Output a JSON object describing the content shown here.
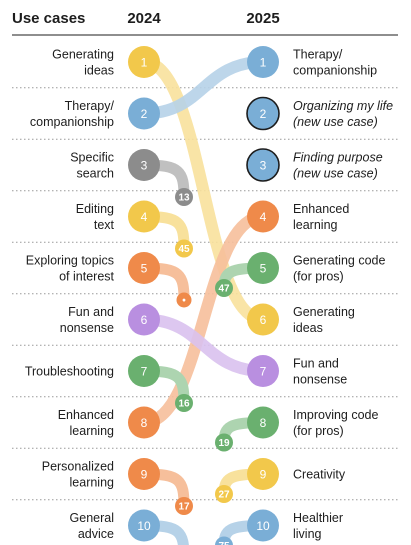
{
  "chart_data": {
    "type": "slopegraph",
    "headers": {
      "left": "Use cases",
      "col1": "2024",
      "col2": "2025"
    },
    "colors": {
      "yellow": "#f2c84b",
      "blue": "#7aaed6",
      "gray": "#8c8c8c",
      "orange": "#ef8a4a",
      "purple": "#b98fe0",
      "green": "#6ab06f"
    },
    "left": [
      {
        "rank": "1",
        "lines": [
          "Generating",
          "ideas"
        ],
        "color": "yellow"
      },
      {
        "rank": "2",
        "lines": [
          "Therapy/",
          "companionship"
        ],
        "color": "blue"
      },
      {
        "rank": "3",
        "lines": [
          "Specific",
          "search"
        ],
        "color": "gray"
      },
      {
        "rank": "4",
        "lines": [
          "Editing",
          "text"
        ],
        "color": "yellow"
      },
      {
        "rank": "5",
        "lines": [
          "Exploring topics",
          "of interest"
        ],
        "color": "orange"
      },
      {
        "rank": "6",
        "lines": [
          "Fun and",
          "nonsense"
        ],
        "color": "purple"
      },
      {
        "rank": "7",
        "lines": [
          "Troubleshooting"
        ],
        "color": "green"
      },
      {
        "rank": "8",
        "lines": [
          "Enhanced",
          "learning"
        ],
        "color": "orange"
      },
      {
        "rank": "9",
        "lines": [
          "Personalized",
          "learning"
        ],
        "color": "orange"
      },
      {
        "rank": "10",
        "lines": [
          "General",
          "advice"
        ],
        "color": "blue"
      }
    ],
    "right": [
      {
        "rank": "1",
        "lines": [
          "Therapy/",
          "companionship"
        ],
        "color": "blue",
        "italic": false,
        "outlined": false
      },
      {
        "rank": "2",
        "lines": [
          "Organizing my life",
          "(new use case)"
        ],
        "color": "blue",
        "italic": true,
        "outlined": true
      },
      {
        "rank": "3",
        "lines": [
          "Finding purpose",
          "(new use case)"
        ],
        "color": "blue",
        "italic": true,
        "outlined": true
      },
      {
        "rank": "4",
        "lines": [
          "Enhanced",
          "learning"
        ],
        "color": "orange",
        "italic": false,
        "outlined": false
      },
      {
        "rank": "5",
        "lines": [
          "Generating code",
          "(for pros)"
        ],
        "color": "green",
        "italic": false,
        "outlined": false
      },
      {
        "rank": "6",
        "lines": [
          "Generating",
          "ideas"
        ],
        "color": "yellow",
        "italic": false,
        "outlined": false
      },
      {
        "rank": "7",
        "lines": [
          "Fun and",
          "nonsense"
        ],
        "color": "purple",
        "italic": false,
        "outlined": false
      },
      {
        "rank": "8",
        "lines": [
          "Improving code",
          "(for pros)"
        ],
        "color": "green",
        "italic": false,
        "outlined": false
      },
      {
        "rank": "9",
        "lines": [
          "Creativity"
        ],
        "color": "yellow",
        "italic": false,
        "outlined": false
      },
      {
        "rank": "10",
        "lines": [
          "Healthier",
          "living"
        ],
        "color": "blue",
        "italic": false,
        "outlined": false
      }
    ],
    "links": [
      {
        "from": 1,
        "to": 6,
        "color": "yellow"
      },
      {
        "from": 2,
        "to": 1,
        "color": "blue"
      },
      {
        "from": 8,
        "to": 4,
        "color": "orange"
      },
      {
        "from": 6,
        "to": 7,
        "color": "purple"
      }
    ],
    "exits": [
      {
        "from": 3,
        "label": "13",
        "color": "gray"
      },
      {
        "from": 4,
        "label": "45",
        "color": "yellow"
      },
      {
        "from": 5,
        "label": "•",
        "color": "orange"
      },
      {
        "from": 7,
        "label": "16",
        "color": "green"
      },
      {
        "from": 9,
        "label": "17",
        "color": "orange"
      },
      {
        "from": 10,
        "label": "•",
        "color": "blue"
      }
    ],
    "entries": [
      {
        "to": 5,
        "label": "47",
        "color": "green"
      },
      {
        "to": 8,
        "label": "19",
        "color": "green"
      },
      {
        "to": 9,
        "label": "27",
        "color": "yellow"
      },
      {
        "to": 10,
        "label": "75",
        "color": "blue"
      }
    ]
  }
}
